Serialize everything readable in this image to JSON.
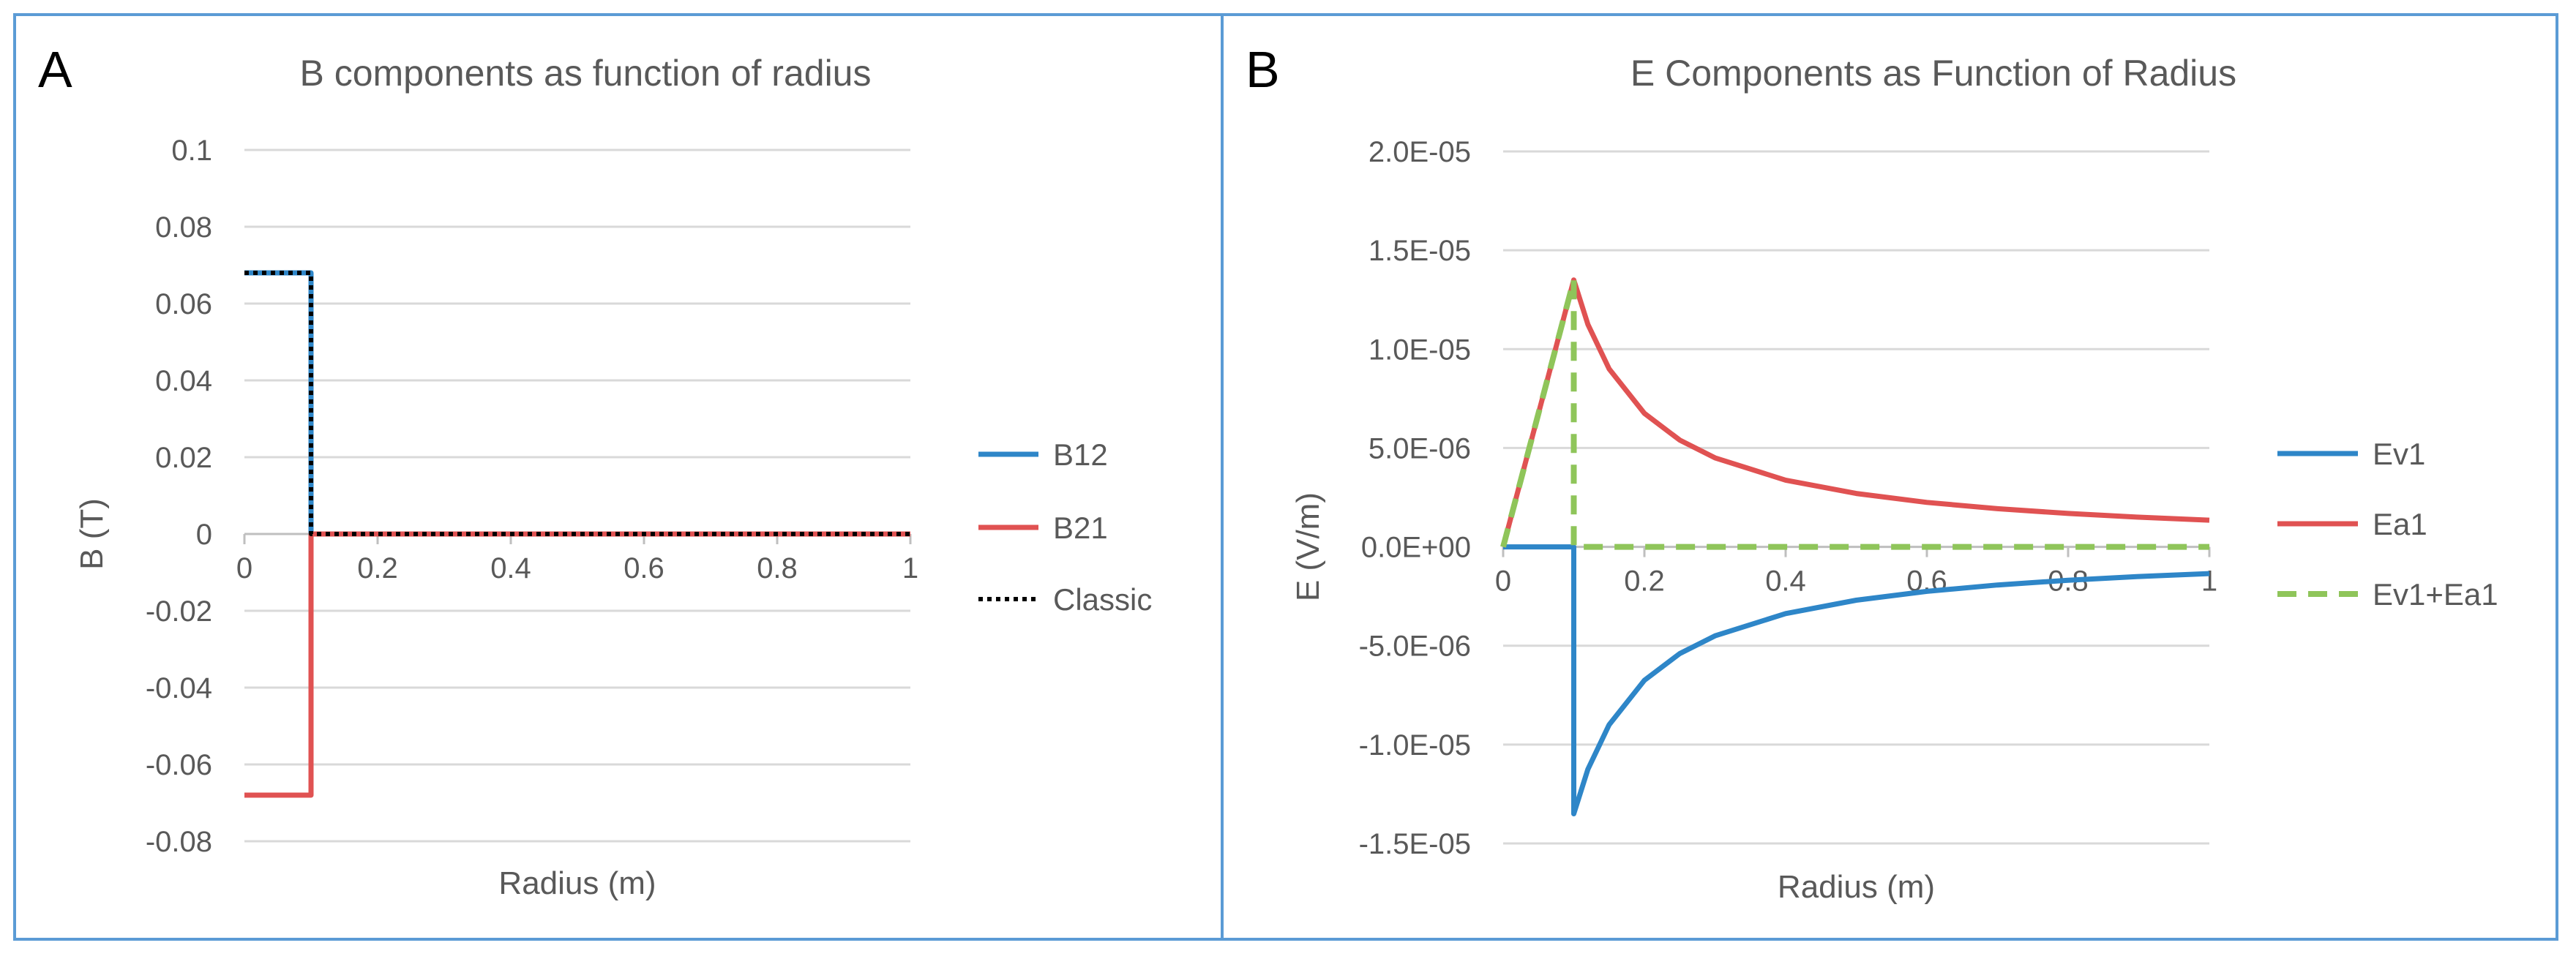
{
  "chart_data": [
    {
      "type": "line",
      "panel_letter": "A",
      "title": "B components as function of radius",
      "xlabel": "Radius (m)",
      "ylabel": "B (T)",
      "xlim": [
        0,
        1
      ],
      "ylim": [
        -0.08,
        0.1
      ],
      "x_ticks": [
        0,
        0.2,
        0.4,
        0.6,
        0.8,
        1
      ],
      "x_tick_labels": [
        "0",
        "0.2",
        "0.4",
        "0.6",
        "0.8",
        "1"
      ],
      "y_ticks": [
        0.1,
        0.08,
        0.06,
        0.04,
        0.02,
        0,
        -0.02,
        -0.04,
        -0.06,
        -0.08
      ],
      "y_tick_labels": [
        "0.1",
        "0.08",
        "0.06",
        "0.04",
        "0.02",
        "0",
        "-0.02",
        "-0.04",
        "-0.06",
        "-0.08"
      ],
      "grid": "horizontal",
      "legend_position": "right",
      "series": [
        {
          "name": "B12",
          "color": "#2e86c8",
          "style": "solid",
          "x": [
            0,
            0.1,
            0.1,
            1
          ],
          "y": [
            0.068,
            0.068,
            0,
            0
          ]
        },
        {
          "name": "B21",
          "color": "#e05252",
          "style": "solid",
          "x": [
            0,
            0.1,
            0.1,
            1
          ],
          "y": [
            -0.068,
            -0.068,
            0,
            0
          ]
        },
        {
          "name": "Classic",
          "color": "#000000",
          "style": "dotted",
          "x": [
            0,
            0.1,
            0.1,
            1
          ],
          "y": [
            0.068,
            0.068,
            0,
            0
          ]
        }
      ]
    },
    {
      "type": "line",
      "panel_letter": "B",
      "title": "E Components as Function of Radius",
      "xlabel": "Radius (m)",
      "ylabel": "E (V/m)",
      "xlim": [
        0,
        1
      ],
      "ylim": [
        -1.5e-05,
        2e-05
      ],
      "x_ticks": [
        0,
        0.2,
        0.4,
        0.6,
        0.8,
        1
      ],
      "x_tick_labels": [
        "0",
        "0.2",
        "0.4",
        "0.6",
        "0.8",
        "1"
      ],
      "y_ticks": [
        2e-05,
        1.5e-05,
        1e-05,
        5e-06,
        0,
        -5e-06,
        -1e-05,
        -1.5e-05
      ],
      "y_tick_labels": [
        "2.0E-05",
        "1.5E-05",
        "1.0E-05",
        "5.0E-06",
        "0.0E+00",
        "-5.0E-06",
        "-1.0E-05",
        "-1.5E-05"
      ],
      "grid": "horizontal",
      "legend_position": "right",
      "series": [
        {
          "name": "Ev1",
          "color": "#2e86c8",
          "style": "solid",
          "x": [
            0,
            0.1,
            0.1,
            0.12,
            0.15,
            0.2,
            0.25,
            0.3,
            0.4,
            0.5,
            0.6,
            0.7,
            0.8,
            0.9,
            1
          ],
          "y": [
            0,
            0,
            -1.35e-05,
            -1.125e-05,
            -9e-06,
            -6.75e-06,
            -5.4e-06,
            -4.5e-06,
            -3.375e-06,
            -2.7e-06,
            -2.25e-06,
            -1.93e-06,
            -1.69e-06,
            -1.5e-06,
            -1.35e-06
          ]
        },
        {
          "name": "Ea1",
          "color": "#e05252",
          "style": "solid",
          "x": [
            0,
            0.1,
            0.12,
            0.15,
            0.2,
            0.25,
            0.3,
            0.4,
            0.5,
            0.6,
            0.7,
            0.8,
            0.9,
            1
          ],
          "y": [
            0,
            1.35e-05,
            1.125e-05,
            9e-06,
            6.75e-06,
            5.4e-06,
            4.5e-06,
            3.375e-06,
            2.7e-06,
            2.25e-06,
            1.93e-06,
            1.69e-06,
            1.5e-06,
            1.35e-06
          ]
        },
        {
          "name": "Ev1+Ea1",
          "color": "#8fc55a",
          "style": "dashed",
          "x": [
            0,
            0.1,
            0.1,
            1
          ],
          "y": [
            0,
            1.35e-05,
            0,
            0
          ]
        }
      ]
    }
  ]
}
